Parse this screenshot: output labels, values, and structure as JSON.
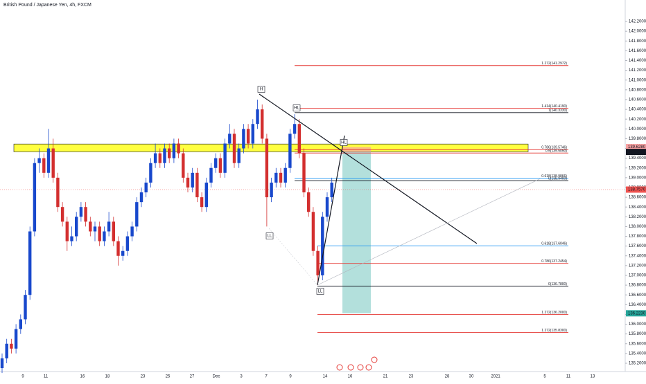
{
  "chart_data": {
    "type": "candlestick",
    "title": "British Pound / Japanese Yen, 4h, FXCM",
    "up_color": "#1848cc",
    "down_color": "#d32f2f",
    "ylim": [
      135.03,
      142.64
    ],
    "yticks": [
      {
        "value": 135.2,
        "label": "135.2000"
      },
      {
        "value": 135.4,
        "label": "135.4000"
      },
      {
        "value": 135.6,
        "label": "135.6000"
      },
      {
        "value": 135.8,
        "label": "135.8000"
      },
      {
        "value": 136.0,
        "label": "136.0000"
      },
      {
        "value": 136.2,
        "label": "136.2000"
      },
      {
        "value": 136.4,
        "label": "136.4000"
      },
      {
        "value": 136.6,
        "label": "136.6000"
      },
      {
        "value": 136.8,
        "label": "136.8000"
      },
      {
        "value": 137.0,
        "label": "137.0000"
      },
      {
        "value": 137.2,
        "label": "137.2000"
      },
      {
        "value": 137.4,
        "label": "137.4000"
      },
      {
        "value": 137.6,
        "label": "137.6000"
      },
      {
        "value": 137.8,
        "label": "137.8000"
      },
      {
        "value": 138.0,
        "label": "138.0000"
      },
      {
        "value": 138.2,
        "label": "138.2000"
      },
      {
        "value": 138.4,
        "label": "138.4000"
      },
      {
        "value": 138.6,
        "label": "138.6000"
      },
      {
        "value": 138.8,
        "label": "138.8000"
      },
      {
        "value": 139.0,
        "label": "139.0000"
      },
      {
        "value": 139.2,
        "label": "139.2000"
      },
      {
        "value": 139.4,
        "label": "139.4000"
      },
      {
        "value": 139.6,
        "label": "139.6000"
      },
      {
        "value": 139.8,
        "label": "139.8000"
      },
      {
        "value": 140.0,
        "label": "140.0000"
      },
      {
        "value": 140.2,
        "label": "140.2000"
      },
      {
        "value": 140.4,
        "label": "140.4000"
      },
      {
        "value": 140.6,
        "label": "140.6000"
      },
      {
        "value": 140.8,
        "label": "140.8000"
      },
      {
        "value": 141.0,
        "label": "141.0000"
      },
      {
        "value": 141.2,
        "label": "141.2000"
      },
      {
        "value": 141.4,
        "label": "141.4000"
      },
      {
        "value": 141.6,
        "label": "141.6000"
      },
      {
        "value": 141.8,
        "label": "141.8000"
      },
      {
        "value": 142.0,
        "label": "142.0000"
      },
      {
        "value": 142.2,
        "label": "142.2000"
      }
    ],
    "xlabels": [
      "9",
      "11",
      "16",
      "18",
      "23",
      "25",
      "27",
      "Dec",
      "3",
      "7",
      "9",
      "14",
      "16",
      "21",
      "23",
      "28",
      "30",
      "2021",
      "5",
      "11",
      "13"
    ],
    "candles": [
      [
        135.1,
        135.4,
        135.0,
        135.3
      ],
      [
        135.3,
        135.7,
        135.2,
        135.6
      ],
      [
        135.6,
        135.7,
        135.4,
        135.5
      ],
      [
        135.5,
        136.0,
        135.4,
        135.9
      ],
      [
        135.9,
        136.2,
        135.8,
        136.1
      ],
      [
        136.1,
        136.7,
        136.0,
        136.6
      ],
      [
        136.6,
        138.0,
        136.5,
        137.9
      ],
      [
        137.9,
        139.4,
        137.8,
        139.3
      ],
      [
        139.3,
        139.6,
        139.1,
        139.4
      ],
      [
        139.4,
        139.5,
        139.0,
        139.1
      ],
      [
        139.1,
        140.0,
        139.0,
        139.6
      ],
      [
        139.6,
        139.8,
        138.9,
        139.0
      ],
      [
        139.0,
        139.1,
        138.3,
        138.4
      ],
      [
        138.4,
        138.5,
        138.0,
        138.1
      ],
      [
        138.1,
        138.2,
        137.5,
        137.7
      ],
      [
        137.7,
        138.0,
        137.6,
        137.8
      ],
      [
        137.8,
        138.3,
        137.7,
        138.2
      ],
      [
        138.2,
        138.5,
        138.1,
        138.4
      ],
      [
        138.4,
        138.5,
        138.0,
        138.1
      ],
      [
        138.1,
        138.2,
        137.8,
        137.9
      ],
      [
        137.9,
        138.1,
        137.7,
        138.0
      ],
      [
        138.0,
        138.1,
        137.6,
        137.7
      ],
      [
        137.7,
        138.0,
        137.6,
        137.9
      ],
      [
        137.9,
        138.3,
        137.8,
        138.1
      ],
      [
        138.1,
        138.2,
        137.6,
        137.7
      ],
      [
        137.7,
        137.8,
        137.2,
        137.4
      ],
      [
        137.4,
        137.6,
        137.3,
        137.5
      ],
      [
        137.5,
        137.9,
        137.4,
        137.8
      ],
      [
        137.8,
        138.1,
        137.7,
        138.0
      ],
      [
        138.0,
        138.6,
        137.9,
        138.5
      ],
      [
        138.5,
        138.8,
        138.4,
        138.7
      ],
      [
        138.7,
        139.0,
        138.6,
        138.9
      ],
      [
        138.9,
        139.4,
        138.8,
        139.3
      ],
      [
        139.3,
        139.7,
        139.2,
        139.5
      ],
      [
        139.5,
        139.6,
        139.2,
        139.3
      ],
      [
        139.3,
        139.7,
        139.2,
        139.6
      ],
      [
        139.6,
        139.7,
        139.3,
        139.4
      ],
      [
        139.4,
        139.8,
        139.3,
        139.7
      ],
      [
        139.7,
        139.8,
        139.4,
        139.5
      ],
      [
        139.5,
        139.6,
        138.9,
        139.0
      ],
      [
        139.0,
        139.1,
        138.7,
        138.8
      ],
      [
        138.8,
        139.2,
        138.7,
        139.1
      ],
      [
        139.1,
        139.2,
        138.5,
        138.6
      ],
      [
        138.6,
        138.7,
        138.3,
        138.4
      ],
      [
        138.4,
        139.0,
        138.3,
        138.9
      ],
      [
        138.9,
        139.3,
        138.8,
        139.2
      ],
      [
        139.2,
        139.5,
        139.1,
        139.4
      ],
      [
        139.4,
        139.5,
        139.0,
        139.1
      ],
      [
        139.1,
        139.8,
        139.0,
        139.7
      ],
      [
        139.7,
        140.1,
        139.6,
        139.9
      ],
      [
        139.9,
        140.0,
        139.2,
        139.3
      ],
      [
        139.3,
        139.7,
        139.2,
        139.6
      ],
      [
        139.6,
        140.1,
        139.5,
        140.0
      ],
      [
        140.0,
        140.1,
        139.6,
        139.7
      ],
      [
        139.7,
        140.2,
        139.6,
        140.1
      ],
      [
        140.1,
        140.6,
        140.0,
        140.4
      ],
      [
        140.4,
        140.5,
        139.7,
        139.8
      ],
      [
        139.8,
        139.9,
        138.0,
        138.6
      ],
      [
        138.6,
        139.0,
        138.5,
        138.9
      ],
      [
        138.9,
        139.2,
        138.8,
        139.1
      ],
      [
        139.1,
        139.2,
        138.8,
        138.9
      ],
      [
        138.9,
        139.3,
        138.8,
        139.2
      ],
      [
        139.2,
        140.0,
        139.1,
        139.9
      ],
      [
        139.9,
        140.3,
        139.8,
        140.1
      ],
      [
        140.1,
        140.2,
        139.4,
        139.5
      ],
      [
        139.5,
        139.6,
        138.6,
        138.7
      ],
      [
        138.7,
        138.8,
        138.2,
        138.3
      ],
      [
        138.3,
        138.4,
        137.4,
        137.5
      ],
      [
        137.5,
        137.6,
        136.8,
        137.0
      ],
      [
        137.0,
        138.3,
        136.9,
        138.2
      ],
      [
        138.2,
        138.7,
        138.1,
        138.6
      ],
      [
        138.6,
        139.0,
        138.5,
        138.9
      ]
    ],
    "levels": [
      {
        "value": 141.2972,
        "label": "1.272(141.2972)",
        "color": "#e53935"
      },
      {
        "value": 140.419,
        "label": "1.414(140.4190)",
        "color": "#e53935"
      },
      {
        "value": 140.333,
        "label": "1(140.3330)",
        "color": "#131722"
      },
      {
        "value": 139.5746,
        "label": "0.786(139.5746)",
        "color": "#e53935"
      },
      {
        "value": 139.505,
        "label": "0.5(139.5050)",
        "color": "#e53935"
      },
      {
        "value": 138.9866,
        "label": "0.618(138.9866)",
        "color": "#2196f3"
      },
      {
        "value": 138.94,
        "label": "0(138.9400)",
        "color": "#131722"
      },
      {
        "value": 137.6046,
        "label": "0.618(137.6046)",
        "color": "#2196f3"
      },
      {
        "value": 137.2454,
        "label": "0.786(137.2454)",
        "color": "#e53935"
      },
      {
        "value": 136.78,
        "label": "0(136.7800)",
        "color": "#131722"
      },
      {
        "value": 136.2,
        "label": "1.272(136.2000)",
        "color": "#e53935"
      },
      {
        "value": 135.83,
        "label": "1.272(135.8300)",
        "color": "#e53935"
      }
    ],
    "badges": [
      {
        "value": 139.628,
        "label": "139.6280",
        "color": "#f7a1a1"
      },
      {
        "value": 139.528,
        "label": "139.5280",
        "color": "#131722"
      },
      {
        "value": 138.757,
        "label": "138.7570",
        "color": "#ef5350"
      },
      {
        "value": 136.223,
        "label": "136.2230",
        "color": "#26a69a"
      }
    ],
    "annotations": [
      "H",
      "HL",
      "HL",
      "LL",
      "LL"
    ]
  }
}
